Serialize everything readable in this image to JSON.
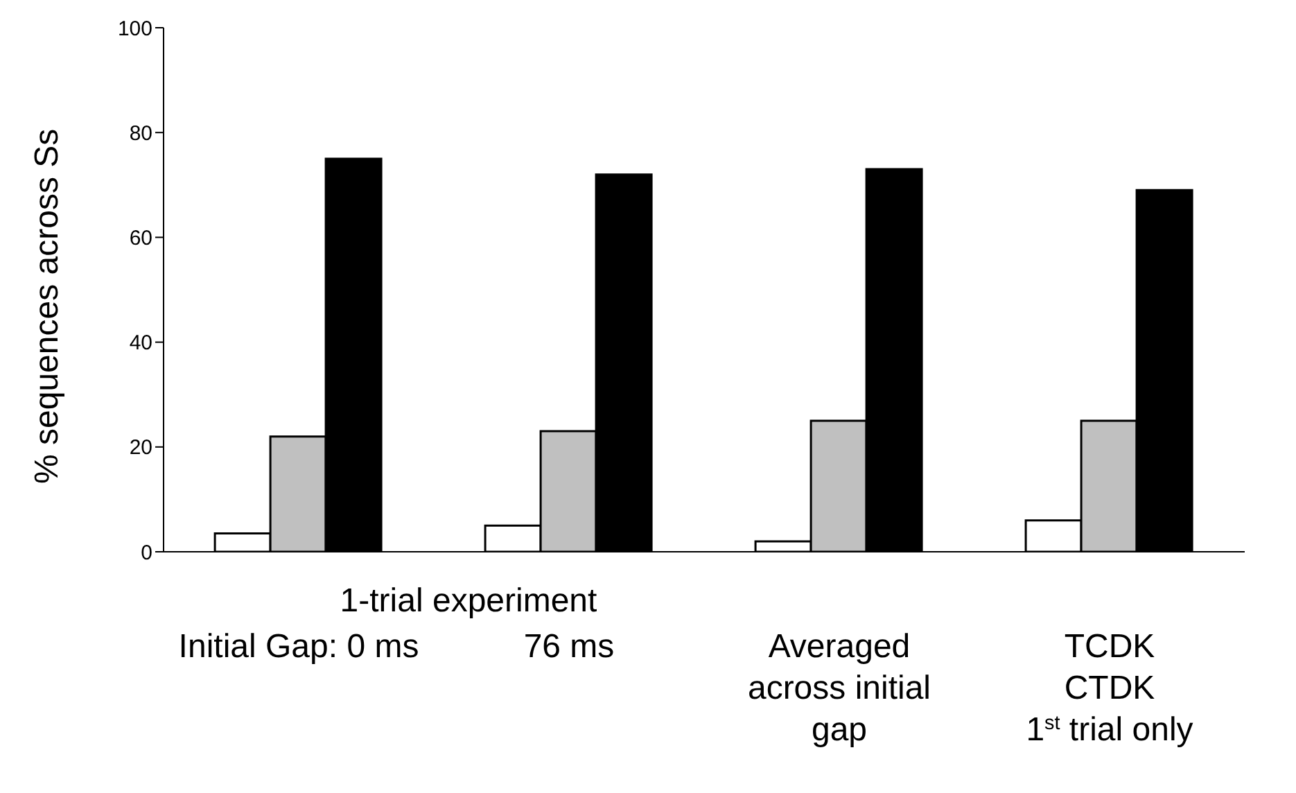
{
  "chart_data": {
    "type": "bar",
    "ylabel": "% sequences across Ss",
    "categories": [
      "Initial Gap: 0 ms",
      "76 ms",
      "Averaged\nacross initial\ngap",
      "TCDK\nCTDK\n1$^{st}$ trial only"
    ],
    "series": [
      {
        "color": "#ffffff",
        "values": [
          3.5,
          5,
          2,
          6
        ]
      },
      {
        "color": "#c0c0c0",
        "values": [
          22,
          23,
          25,
          25
        ]
      },
      {
        "color": "#000000",
        "values": [
          75,
          72,
          73,
          69
        ]
      }
    ],
    "ylim": [
      0,
      100
    ],
    "yticks": [
      0,
      20,
      40,
      60,
      80,
      100
    ],
    "grid": false,
    "legend": false,
    "annotations": [
      "1-trial experiment"
    ]
  }
}
